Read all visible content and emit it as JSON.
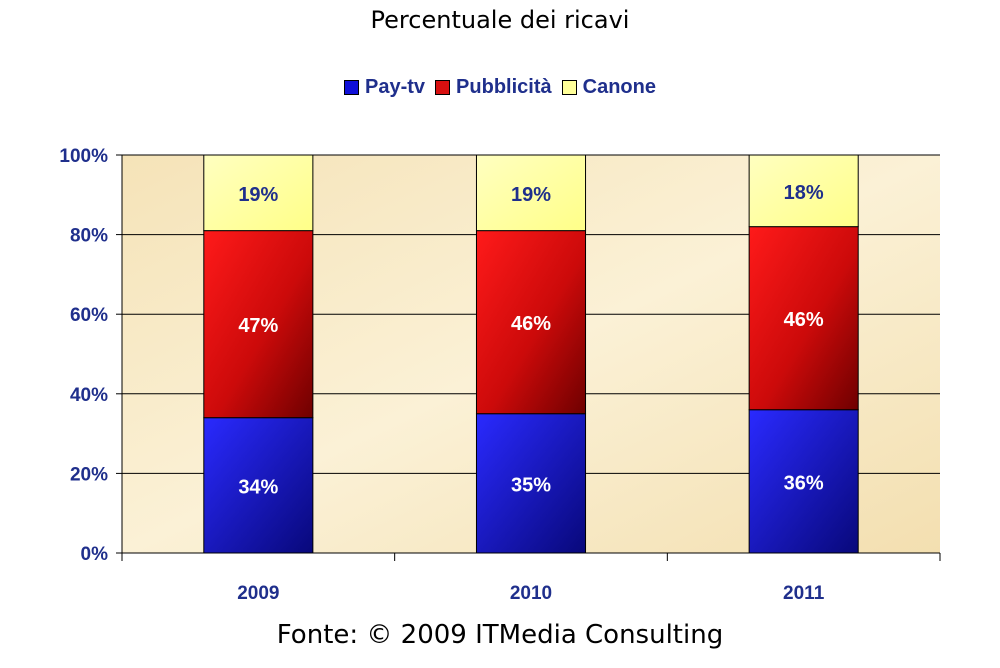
{
  "chart_data": {
    "type": "bar",
    "stacked": true,
    "title": "Percentuale dei ricavi",
    "categories": [
      "2009",
      "2010",
      "2011"
    ],
    "series": [
      {
        "name": "Pay-tv",
        "values": [
          34,
          35,
          36
        ],
        "color": "#1010d8",
        "labels": [
          "34%",
          "35%",
          "36%"
        ],
        "label_color": "#ffffff"
      },
      {
        "name": "Pubblicità",
        "values": [
          47,
          46,
          46
        ],
        "color": "#d81010",
        "labels": [
          "47%",
          "46%",
          "46%"
        ],
        "label_color": "#ffffff"
      },
      {
        "name": "Canone",
        "values": [
          19,
          19,
          18
        ],
        "color": "#ffff99",
        "labels": [
          "19%",
          "19%",
          "18%"
        ],
        "label_color": "#1f2f8c"
      }
    ],
    "ylim": [
      0,
      100
    ],
    "yticks": [
      "0%",
      "20%",
      "40%",
      "60%",
      "80%",
      "100%"
    ],
    "grid": true,
    "legend_position": "top"
  },
  "source": "Fonte: © 2009 ITMedia Consulting"
}
